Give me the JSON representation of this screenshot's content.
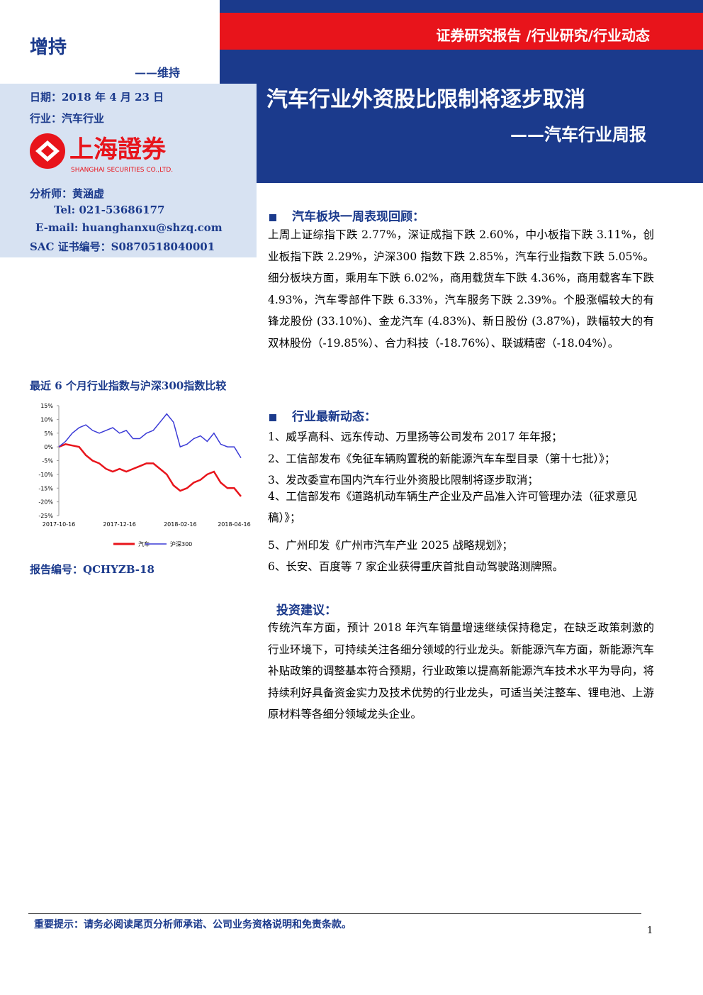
{
  "header": {
    "category": "证券研究报告 /行业研究/行业动态",
    "title": "汽车行业外资股比限制将逐步取消",
    "subtitle": "——汽车行业周报"
  },
  "left": {
    "rating": "增持",
    "rating_change": "——维持",
    "date": "日期：2018 年 4 月 23 日",
    "industry": "行业：汽车行业",
    "logo_name": "上海證券",
    "logo_english": "SHANGHAI SECURITIES CO.,LTD.",
    "analyst": "分析师：黄涵虚",
    "tel": "Tel: 021-53686177",
    "email": "E-mail: huanghanxu@shzq.com",
    "sac": "SAC 证书编号：S0870518040001",
    "chart_title": "最近 6 个月行业指数与沪深300指数比较",
    "report_no": "报告编号：QCHYZB-18"
  },
  "chart_data": {
    "type": "line",
    "categories": [
      "2017-10-16",
      null,
      null,
      null,
      null,
      null,
      null,
      null,
      null,
      "2017-12-16",
      null,
      null,
      null,
      null,
      null,
      null,
      null,
      null,
      "2018-02-16",
      null,
      null,
      null,
      null,
      null,
      null,
      null,
      "2018-04-16",
      null
    ],
    "series": [
      {
        "name": "汽车",
        "color": "#e8141b",
        "values": [
          0,
          1,
          0.5,
          0,
          -3,
          -5,
          -6,
          -8,
          -9,
          -8,
          -9,
          -8,
          -7,
          -6,
          -6,
          -8,
          -10,
          -14,
          -16,
          -15,
          -13,
          -12,
          -10,
          -9,
          -13,
          -15,
          -15,
          -18
        ]
      },
      {
        "name": "沪深300",
        "color": "#3a3ad6",
        "values": [
          0,
          2,
          5,
          7,
          8,
          6,
          5,
          6,
          7,
          5,
          6,
          3,
          3,
          5,
          6,
          9,
          12,
          9,
          0,
          1,
          3,
          4,
          2,
          5,
          1,
          0,
          0,
          -4
        ]
      }
    ],
    "ylim": [
      -25,
      15
    ],
    "yticks": [
      {
        "value": 15,
        "label": "15%"
      },
      {
        "value": 10,
        "label": "10%"
      },
      {
        "value": 5,
        "label": "5%"
      },
      {
        "value": 0,
        "label": "0%"
      },
      {
        "value": -5,
        "label": "-5%"
      },
      {
        "value": -10,
        "label": "-10%"
      },
      {
        "value": -15,
        "label": "-15%"
      },
      {
        "value": -20,
        "label": "-20%"
      },
      {
        "value": -25,
        "label": "-25%"
      }
    ],
    "grid": false,
    "legend": "bottom"
  },
  "sections": [
    {
      "heading": "汽车板块一周表现回顾：",
      "text": "上周上证综指下跌 2.77%，深证成指下跌 2.60%，中小板指下跌 3.11%，创业板指下跌 2.29%，沪深300 指数下跌 2.85%，汽车行业指数下跌 5.05%。细分板块方面，乘用车下跌 6.02%，商用载货车下跌 4.36%，商用载客车下跌 4.93%，汽车零部件下跌 6.33%，汽车服务下跌 2.39%。个股涨幅较大的有锋龙股份 (33.10%)、金龙汽车 (4.83%)、新日股份 (3.87%)，跌幅较大的有双林股份（-19.85%）、合力科技（-18.76%）、联诚精密（-18.04%）。"
    },
    {
      "heading": "行业最新动态：",
      "items": [
        "1、威孚高科、远东传动、万里扬等公司发布 2017 年年报；",
        "2、工信部发布《免征车辆购置税的新能源汽车车型目录（第十七批）》；",
        "3、发改委宣布国内汽车行业外资股比限制将逐步取消；",
        "4、工信部发布《道路机动车辆生产企业及产品准入许可管理办法（征求意见稿）》；",
        "5、广州印发《广州市汽车产业 2025 战略规划》；",
        "6、长安、百度等 7 家企业获得重庆首批自动驾驶路测牌照。"
      ]
    },
    {
      "heading": "投资建议：",
      "text": "传统汽车方面，预计 2018 年汽车销量增速继续保持稳定，在缺乏政策刺激的行业环境下，可持续关注各细分领域的行业龙头。新能源汽车方面，新能源汽车补贴政策的调整基本符合预期，行业政策以提高新能源汽车技术水平为导向，将持续利好具备资金实力及技术优势的行业龙头，可适当关注整车、锂电池、上游原材料等各细分领域龙头企业。"
    }
  ],
  "footer": {
    "notice": "重要提示：请务必阅读尾页分析师承诺、公司业务资格说明和免责条款。",
    "page": "1"
  }
}
